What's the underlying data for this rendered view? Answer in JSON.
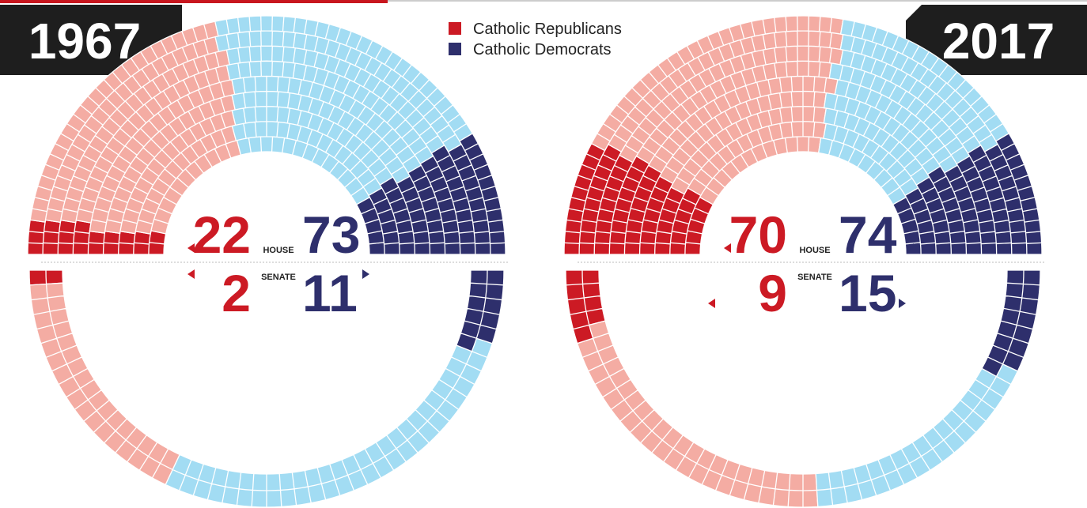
{
  "legend": [
    {
      "name": "Catholic Republicans",
      "color": "#cc1a24"
    },
    {
      "name": "Catholic Democrats",
      "color": "#2e2f6c"
    }
  ],
  "colors": {
    "other_republicans": "#f4aca3",
    "other_democrats": "#a2dcf3"
  },
  "chart_data": [
    {
      "type": "parliament",
      "title": "1967",
      "house": {
        "label": "HOUSE",
        "catholic_republicans": 22,
        "other_republicans": 165,
        "other_democrats": 175,
        "catholic_democrats": 73
      },
      "senate": {
        "label": "SENATE",
        "catholic_republicans": 2,
        "other_republicans": 34,
        "other_democrats": 53,
        "catholic_democrats": 11
      }
    },
    {
      "type": "parliament",
      "title": "2017",
      "house": {
        "label": "HOUSE",
        "catholic_republicans": 70,
        "other_republicans": 171,
        "other_democrats": 120,
        "catholic_democrats": 74
      },
      "senate": {
        "label": "SENATE",
        "catholic_republicans": 9,
        "other_republicans": 43,
        "other_democrats": 33,
        "catholic_democrats": 15
      }
    }
  ]
}
